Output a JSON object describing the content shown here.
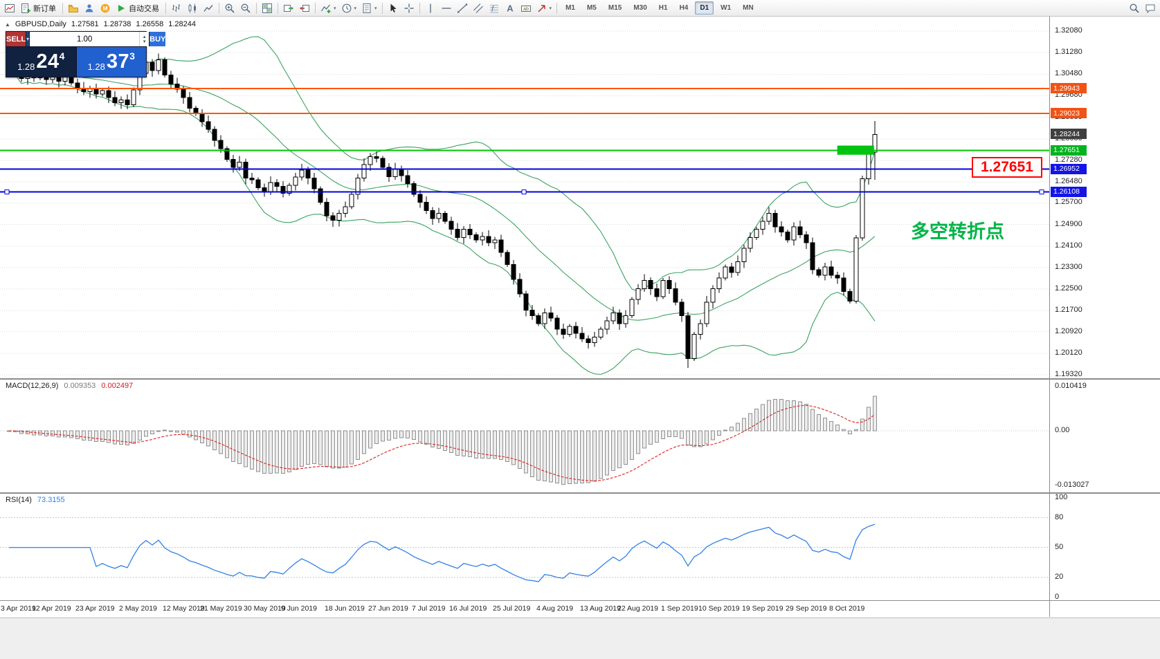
{
  "icons": {
    "caret_down": "▾",
    "caret_up": "▴",
    "marker_up": "▲"
  },
  "toolbar": {
    "buttons": [
      {
        "icon": "new-chart",
        "name": "new-chart"
      },
      {
        "icon": "new-order",
        "name": "new-order",
        "label": "新订单"
      },
      {
        "sep": true
      },
      {
        "icon": "profiles",
        "name": "profiles"
      },
      {
        "icon": "market-watch",
        "name": "market-watch"
      },
      {
        "icon": "community",
        "name": "mql-community"
      },
      {
        "icon": "autotrading",
        "name": "autotrading",
        "label": "自动交易"
      },
      {
        "sep": true
      },
      {
        "icon": "bar-chart",
        "name": "bar-chart"
      },
      {
        "icon": "candlestick",
        "name": "candlestick-chart"
      },
      {
        "icon": "line-chart",
        "name": "line-chart"
      },
      {
        "sep": true
      },
      {
        "icon": "zoom-in",
        "name": "zoom-in"
      },
      {
        "icon": "zoom-out",
        "name": "zoom-out"
      },
      {
        "sep": true
      },
      {
        "icon": "grid",
        "name": "tile-windows"
      },
      {
        "sep": true
      },
      {
        "icon": "auto-scroll",
        "name": "auto-scroll"
      },
      {
        "icon": "chart-shift",
        "name": "chart-shift"
      },
      {
        "sep": true
      },
      {
        "icon": "indicators",
        "name": "indicators",
        "caret": true
      },
      {
        "icon": "periods",
        "name": "periods",
        "caret": true
      },
      {
        "icon": "templates",
        "name": "templates",
        "caret": true
      },
      {
        "sep": true
      },
      {
        "icon": "cursor",
        "name": "cursor"
      },
      {
        "icon": "crosshair",
        "name": "crosshair"
      },
      {
        "sep": true
      },
      {
        "icon": "vertical-line",
        "name": "vertical-line"
      },
      {
        "icon": "horizontal-line",
        "name": "horizontal-line"
      },
      {
        "icon": "trendline",
        "name": "trendline"
      },
      {
        "icon": "channel",
        "name": "equidistant-channel"
      },
      {
        "icon": "fibonacci",
        "name": "fibonacci-retracement"
      },
      {
        "icon": "text",
        "name": "text"
      },
      {
        "icon": "label",
        "name": "text-label"
      },
      {
        "icon": "arrows",
        "name": "arrow-objects",
        "caret": true
      },
      {
        "sep": true
      }
    ],
    "timeframes": [
      "M1",
      "M5",
      "M15",
      "M30",
      "H1",
      "H4",
      "D1",
      "W1",
      "MN"
    ],
    "active_timeframe": "D1",
    "right_icons": [
      {
        "icon": "search",
        "name": "search"
      },
      {
        "icon": "chat",
        "name": "community-chat"
      }
    ]
  },
  "chart": {
    "symbol": "GBPUSD,Daily",
    "ohlc": {
      "open": "1.27581",
      "high": "1.28738",
      "low": "1.26558",
      "close": "1.28244"
    },
    "one_click": {
      "sell_label": "SELL",
      "buy_label": "BUY",
      "volume": "1.00",
      "sell_price": {
        "base": "1.28",
        "big": "24",
        "sup": "4"
      },
      "buy_price": {
        "base": "1.28",
        "big": "37",
        "sup": "3"
      }
    }
  },
  "chart_data": {
    "type": "candlestick",
    "symbol": "GBPUSD",
    "timeframe": "Daily",
    "price_axis": [
      "1.32080",
      "1.31280",
      "1.30480",
      "1.29680",
      "1.28880",
      "1.28080",
      "1.27280",
      "1.26480",
      "1.25700",
      "1.24900",
      "1.24100",
      "1.23300",
      "1.22500",
      "1.21700",
      "1.20920",
      "1.20120",
      "1.19320"
    ],
    "hlines": [
      {
        "price": 1.29943,
        "label": "1.29943",
        "color": "#ff5500",
        "tag_bg": "#f25214"
      },
      {
        "price": 1.29023,
        "label": "1.29023",
        "color": "#ff5500",
        "tag_bg": "#f25214"
      },
      {
        "price": 1.27651,
        "label": "1.27651",
        "color": "#00c400",
        "tag_bg": "#00b41e"
      },
      {
        "price": 1.26952,
        "label": "1.26952",
        "color": "#0000e0",
        "tag_bg": "#1414e6"
      },
      {
        "price": 1.26108,
        "label": "1.26108",
        "color": "#0000e0",
        "tag_bg": "#1414e6",
        "selected": true
      }
    ],
    "current_tag": {
      "price": 1.28244,
      "label": "1.28244",
      "bg": "#3f3f3f"
    },
    "annotations": {
      "callout": "1.27651",
      "note": "多空转折点",
      "note_color": "#00b447",
      "rect": {
        "i0": 133.3,
        "i1": 139.2,
        "p_top": 1.2783,
        "p_bottom": 1.2749,
        "color": "#00c410"
      }
    },
    "candles": {
      "first_open": 1.3105,
      "wick_base": 0.0009,
      "wick_var": 0.00035,
      "closes": [
        1.309,
        1.306,
        1.3032,
        1.3058,
        1.3035,
        1.3055,
        1.3028,
        1.3048,
        1.3022,
        1.304,
        1.3015,
        1.2996,
        1.2983,
        1.2993,
        1.2974,
        1.2987,
        1.2961,
        1.2942,
        1.2953,
        1.2934,
        1.299,
        1.3052,
        1.3092,
        1.3062,
        1.3102,
        1.3045,
        1.3012,
        1.2992,
        1.2962,
        1.2922,
        1.2902,
        1.2872,
        1.2843,
        1.2802,
        1.2772,
        1.2732,
        1.2702,
        1.2722,
        1.2662,
        1.2656,
        1.2626,
        1.2612,
        1.2646,
        1.2632,
        1.2606,
        1.2636,
        1.2666,
        1.2692,
        1.2662,
        1.2622,
        1.2572,
        1.2522,
        1.2506,
        1.2532,
        1.2556,
        1.2602,
        1.2662,
        1.2712,
        1.2742,
        1.2736,
        1.2702,
        1.2668,
        1.2696,
        1.2672,
        1.2642,
        1.2602,
        1.2572,
        1.2542,
        1.2512,
        1.2532,
        1.2502,
        1.2472,
        1.2442,
        1.2472,
        1.2452,
        1.2432,
        1.2446,
        1.2422,
        1.2432,
        1.2386,
        1.2342,
        1.2286,
        1.2232,
        1.2172,
        1.2152,
        1.2122,
        1.2162,
        1.2142,
        1.2102,
        1.2082,
        1.2112,
        1.2086,
        1.2066,
        1.2052,
        1.2072,
        1.2102,
        1.2132,
        1.2162,
        1.2122,
        1.2152,
        1.2212,
        1.2252,
        1.2282,
        1.2252,
        1.2222,
        1.2282,
        1.2252,
        1.2202,
        1.2152,
        1.1992,
        1.2082,
        1.2122,
        1.2202,
        1.2252,
        1.2292,
        1.2332,
        1.2312,
        1.2352,
        1.2402,
        1.2442,
        1.2472,
        1.2502,
        1.2532,
        1.2482,
        1.2462,
        1.2432,
        1.2482,
        1.2452,
        1.2422,
        1.2322,
        1.2302,
        1.2332,
        1.2302,
        1.2292,
        1.2242,
        1.2206,
        1.244,
        1.266,
        1.2758,
        1.28244
      ],
      "specials": {
        "24": [
          1.3062,
          1.3125,
          1.3048,
          1.3102
        ],
        "52": [
          1.2522,
          1.2535,
          1.2482,
          1.2506
        ],
        "109": [
          1.2152,
          1.2165,
          1.1958,
          1.1992
        ],
        "136": [
          1.2206,
          1.245,
          1.2196,
          1.244
        ],
        "137": [
          1.244,
          1.2672,
          1.243,
          1.266
        ],
        "138": [
          1.266,
          1.2772,
          1.2638,
          1.2758
        ],
        "139": [
          1.27581,
          1.28738,
          1.26558,
          1.28244
        ]
      }
    },
    "dates": [
      {
        "label": "3 Apr 2019",
        "i": 0
      },
      {
        "label": "12 Apr 2019",
        "i": 7
      },
      {
        "label": "23 Apr 2019",
        "i": 14
      },
      {
        "label": "2 May 2019",
        "i": 21
      },
      {
        "label": "12 May 2019",
        "i": 28
      },
      {
        "label": "21 May 2019",
        "i": 34
      },
      {
        "label": "30 May 2019",
        "i": 41
      },
      {
        "label": "9 Jun 2019",
        "i": 47
      },
      {
        "label": "18 Jun 2019",
        "i": 54
      },
      {
        "label": "27 Jun 2019",
        "i": 61
      },
      {
        "label": "7 Jul 2019",
        "i": 68
      },
      {
        "label": "16 Jul 2019",
        "i": 74
      },
      {
        "label": "25 Jul 2019",
        "i": 81
      },
      {
        "label": "4 Aug 2019",
        "i": 88
      },
      {
        "label": "13 Aug 2019",
        "i": 95
      },
      {
        "label": "22 Aug 2019",
        "i": 101
      },
      {
        "label": "1 Sep 2019",
        "i": 108
      },
      {
        "label": "10 Sep 2019",
        "i": 114
      },
      {
        "label": "19 Sep 2019",
        "i": 121
      },
      {
        "label": "29 Sep 2019",
        "i": 128
      },
      {
        "label": "8 Oct 2019",
        "i": 135
      }
    ],
    "bollinger": {
      "period": 20,
      "deviation": 2,
      "color": "#3aa35f"
    },
    "macd": {
      "label": "MACD(12,26,9)",
      "value_main": "0.009353",
      "value_signal": "0.002497",
      "hist_fill": "#ececec",
      "hist_stroke": "#8f8f8f",
      "signal_color": "#e02020",
      "axis": [
        {
          "v": 0.010419,
          "label": "0.010419"
        },
        {
          "v": 0,
          "label": "0.00"
        },
        {
          "v": -0.013027,
          "label": "-0.013027"
        }
      ]
    },
    "rsi": {
      "label": "RSI(14)",
      "value": "73.3155",
      "color": "#2f80e8",
      "levels": [
        80,
        50,
        20
      ],
      "axis": [
        {
          "v": 100,
          "label": "100"
        },
        {
          "v": 80,
          "label": "80"
        },
        {
          "v": 50,
          "label": "50"
        },
        {
          "v": 20,
          "label": "20"
        },
        {
          "v": 0,
          "label": "0"
        }
      ]
    }
  }
}
